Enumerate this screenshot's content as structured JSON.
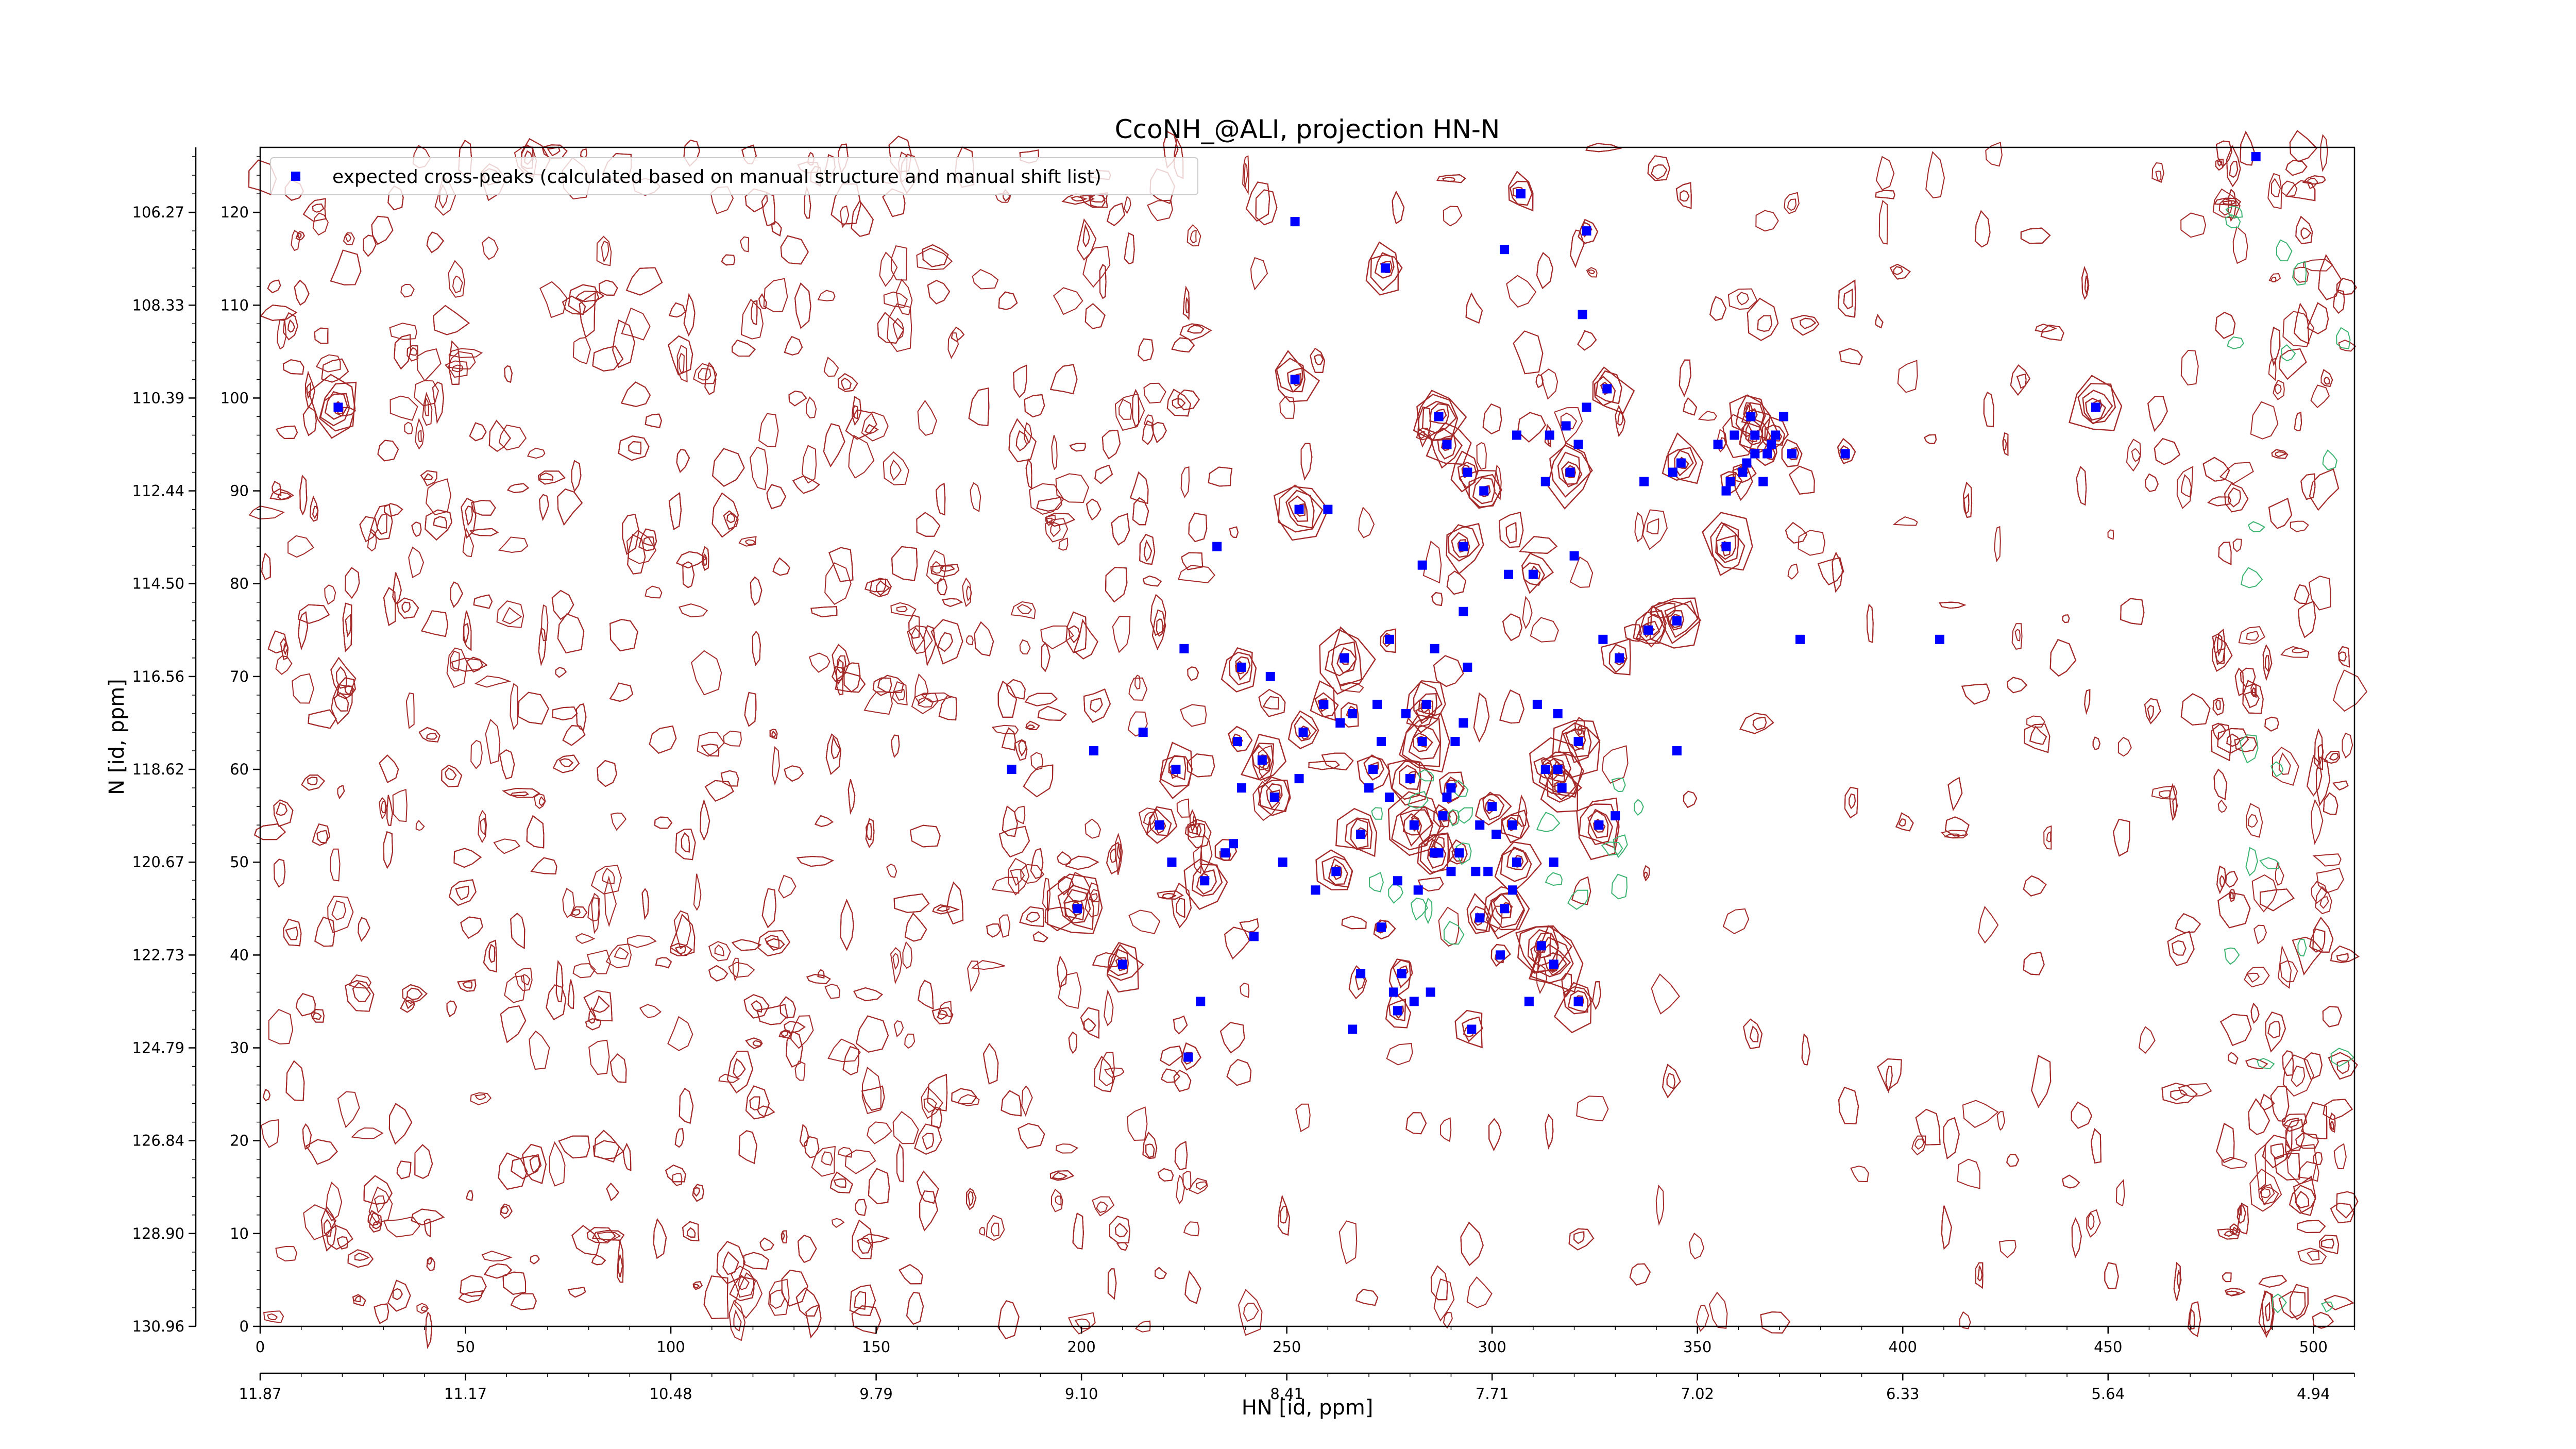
{
  "chart_data": {
    "type": "scatter",
    "title": "CcoNH_@ALI, projection HN-N",
    "xlabel": "HN [id, ppm]",
    "ylabel": "N [id, ppm]",
    "xlim": [
      0,
      510
    ],
    "ylim": [
      0,
      127
    ],
    "x_index_ticks": [
      "0",
      "50",
      "100",
      "150",
      "200",
      "250",
      "300",
      "350",
      "400",
      "450",
      "500"
    ],
    "x_ppm_ticks": [
      "11.87",
      "11.17",
      "10.48",
      "9.79",
      "9.10",
      "8.41",
      "7.71",
      "7.02",
      "6.33",
      "5.64",
      "4.94"
    ],
    "y_index_ticks": [
      "0",
      "10",
      "20",
      "30",
      "40",
      "50",
      "60",
      "70",
      "80",
      "90",
      "100",
      "110",
      "120"
    ],
    "y_ppm_ticks": [
      "130.96",
      "128.90",
      "126.84",
      "124.79",
      "122.73",
      "120.67",
      "118.62",
      "116.56",
      "114.50",
      "112.44",
      "110.39",
      "108.33",
      "106.27"
    ],
    "legend": {
      "placement": "top-left"
    },
    "grid": false,
    "colors": {
      "marker": "#0000ff",
      "contour_positive": "#a52a2a",
      "contour_negative": "#3cb371"
    },
    "series": [
      {
        "name": "expected cross-peaks (calculated based on manual structure and manual shift list)",
        "marker": "square",
        "points": [
          [
            19,
            99
          ],
          [
            183,
            60
          ],
          [
            199,
            45
          ],
          [
            203,
            62
          ],
          [
            210,
            39
          ],
          [
            215,
            64
          ],
          [
            219,
            54
          ],
          [
            222,
            50
          ],
          [
            223,
            60
          ],
          [
            225,
            73
          ],
          [
            226,
            29
          ],
          [
            229,
            35
          ],
          [
            230,
            48
          ],
          [
            233,
            84
          ],
          [
            235,
            51
          ],
          [
            237,
            52
          ],
          [
            238,
            63
          ],
          [
            239,
            58
          ],
          [
            239,
            71
          ],
          [
            242,
            42
          ],
          [
            244,
            61
          ],
          [
            246,
            70
          ],
          [
            247,
            57
          ],
          [
            249,
            50
          ],
          [
            252,
            102
          ],
          [
            252,
            119
          ],
          [
            253,
            88
          ],
          [
            253,
            59
          ],
          [
            254,
            64
          ],
          [
            257,
            47
          ],
          [
            259,
            67
          ],
          [
            260,
            88
          ],
          [
            262,
            49
          ],
          [
            263,
            65
          ],
          [
            264,
            72
          ],
          [
            266,
            32
          ],
          [
            266,
            66
          ],
          [
            268,
            38
          ],
          [
            268,
            53
          ],
          [
            270,
            58
          ],
          [
            271,
            60
          ],
          [
            272,
            67
          ],
          [
            273,
            43
          ],
          [
            273,
            63
          ],
          [
            274,
            114
          ],
          [
            275,
            57
          ],
          [
            275,
            74
          ],
          [
            276,
            36
          ],
          [
            277,
            34
          ],
          [
            277,
            48
          ],
          [
            278,
            38
          ],
          [
            279,
            66
          ],
          [
            280,
            59
          ],
          [
            281,
            35
          ],
          [
            281,
            54
          ],
          [
            282,
            47
          ],
          [
            283,
            63
          ],
          [
            283,
            82
          ],
          [
            284,
            67
          ],
          [
            285,
            36
          ],
          [
            286,
            51
          ],
          [
            286,
            73
          ],
          [
            287,
            98
          ],
          [
            287,
            51
          ],
          [
            288,
            55
          ],
          [
            289,
            57
          ],
          [
            289,
            95
          ],
          [
            290,
            49
          ],
          [
            290,
            58
          ],
          [
            291,
            63
          ],
          [
            292,
            51
          ],
          [
            293,
            65
          ],
          [
            293,
            84
          ],
          [
            293,
            77
          ],
          [
            294,
            92
          ],
          [
            294,
            71
          ],
          [
            295,
            32
          ],
          [
            296,
            49
          ],
          [
            297,
            44
          ],
          [
            297,
            54
          ],
          [
            298,
            90
          ],
          [
            299,
            49
          ],
          [
            300,
            56
          ],
          [
            301,
            53
          ],
          [
            302,
            40
          ],
          [
            303,
            116
          ],
          [
            303,
            45
          ],
          [
            304,
            81
          ],
          [
            305,
            54
          ],
          [
            305,
            47
          ],
          [
            306,
            50
          ],
          [
            306,
            96
          ],
          [
            307,
            122
          ],
          [
            309,
            35
          ],
          [
            310,
            81
          ],
          [
            311,
            67
          ],
          [
            312,
            41
          ],
          [
            313,
            91
          ],
          [
            313,
            60
          ],
          [
            314,
            96
          ],
          [
            315,
            39
          ],
          [
            315,
            50
          ],
          [
            316,
            60
          ],
          [
            316,
            66
          ],
          [
            317,
            58
          ],
          [
            318,
            97
          ],
          [
            319,
            92
          ],
          [
            320,
            83
          ],
          [
            321,
            63
          ],
          [
            321,
            95
          ],
          [
            321,
            35
          ],
          [
            322,
            109
          ],
          [
            323,
            118
          ],
          [
            323,
            99
          ],
          [
            326,
            54
          ],
          [
            327,
            74
          ],
          [
            328,
            101
          ],
          [
            330,
            55
          ],
          [
            331,
            72
          ],
          [
            337,
            91
          ],
          [
            338,
            75
          ],
          [
            344,
            92
          ],
          [
            345,
            76
          ],
          [
            345,
            62
          ],
          [
            346,
            93
          ],
          [
            355,
            95
          ],
          [
            357,
            84
          ],
          [
            357,
            90
          ],
          [
            358,
            91
          ],
          [
            359,
            96
          ],
          [
            361,
            92
          ],
          [
            362,
            93
          ],
          [
            363,
            98
          ],
          [
            364,
            94
          ],
          [
            364,
            96
          ],
          [
            366,
            91
          ],
          [
            367,
            94
          ],
          [
            368,
            95
          ],
          [
            369,
            96
          ],
          [
            371,
            98
          ],
          [
            373,
            94
          ],
          [
            375,
            74
          ],
          [
            386,
            94
          ],
          [
            409,
            74
          ],
          [
            447,
            99
          ],
          [
            486,
            126
          ]
        ]
      }
    ],
    "noise_contours": "ellipse-shaped brown contour rings across the whole spectrum"
  }
}
